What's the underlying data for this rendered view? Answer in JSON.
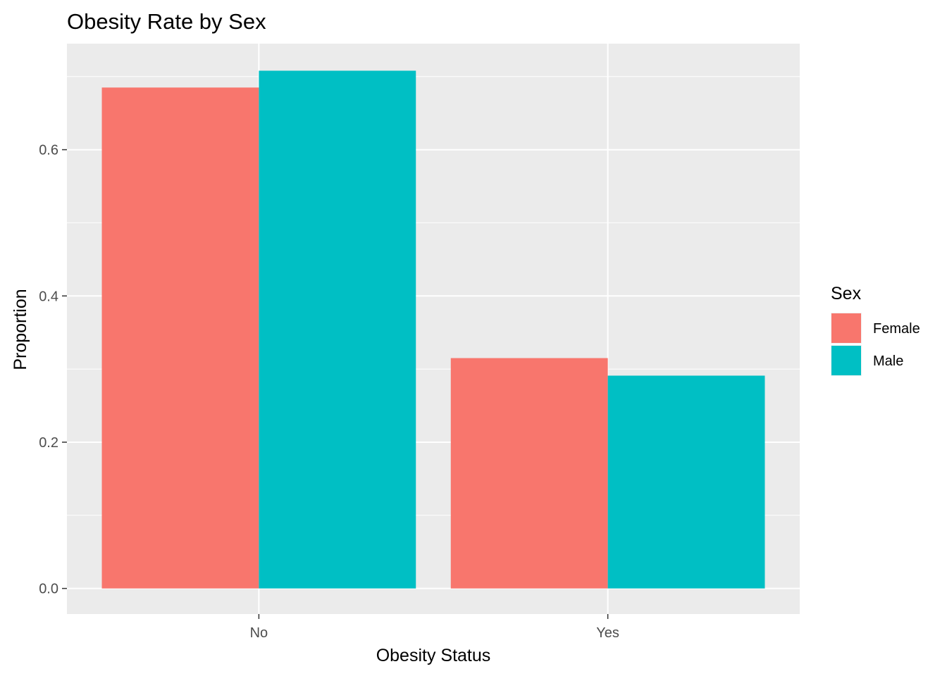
{
  "chart_data": {
    "type": "bar",
    "title": "Obesity Rate by Sex",
    "xlabel": "Obesity Status",
    "ylabel": "Proportion",
    "categories": [
      "No",
      "Yes"
    ],
    "series": [
      {
        "name": "Female",
        "color": "#F8766D",
        "values": [
          0.685,
          0.315
        ]
      },
      {
        "name": "Male",
        "color": "#00BFC4",
        "values": [
          0.708,
          0.291
        ]
      }
    ],
    "ylim": [
      -0.035,
      0.745
    ],
    "yticks": [
      0.0,
      0.2,
      0.4,
      0.6
    ],
    "ytick_labels": [
      "0.0",
      "0.2",
      "0.4",
      "0.6"
    ],
    "grid": true,
    "legend": {
      "title": "Sex",
      "position": "right"
    }
  }
}
